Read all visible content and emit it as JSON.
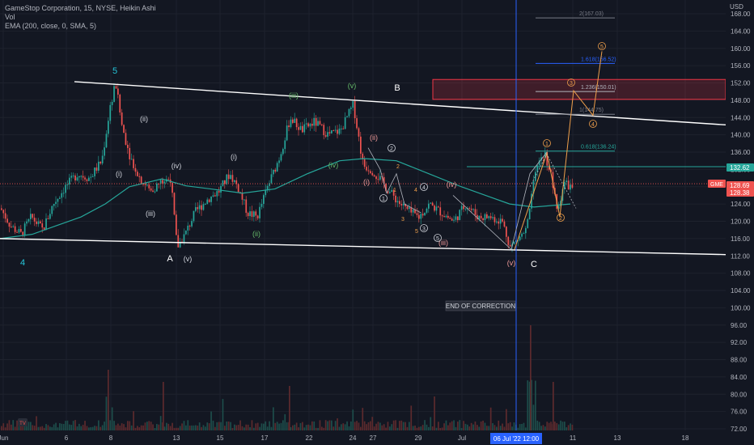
{
  "header": {
    "title": "GameStop Corporation, 15, NYSE, Heikin Ashi",
    "vol": "Vol",
    "ema": "EMA (200, close, 0, SMA, 5)"
  },
  "price_axis": {
    "currency": "USD",
    "ticks": [
      "168.00",
      "164.00",
      "160.00",
      "156.00",
      "152.00",
      "148.00",
      "144.00",
      "140.00",
      "136.00",
      "132.00",
      "128.00",
      "124.00",
      "120.00",
      "116.00",
      "112.00",
      "108.00",
      "104.00",
      "100.00",
      "96.00",
      "92.00",
      "88.00",
      "84.00",
      "80.00",
      "76.00",
      "72.00"
    ],
    "badges": [
      {
        "text": "132.62",
        "color": "#26a69a"
      },
      {
        "text": "GME",
        "color": "#ef5350"
      },
      {
        "text": "128.69",
        "color": "#ef5350"
      },
      {
        "text": "128.38",
        "color": "#ef5350"
      }
    ]
  },
  "time_axis": {
    "ticks": [
      "Jun",
      "6",
      "8",
      "13",
      "15",
      "17",
      "22",
      "24",
      "27",
      "29",
      "Jul",
      "11",
      "13",
      "18"
    ],
    "cursor_label": "06 Jul '22   12:00"
  },
  "fib_levels": [
    {
      "label": "2(167.03)",
      "color": "#787b86"
    },
    {
      "label": "1.618(156.52)",
      "color": "#2962ff"
    },
    {
      "label": "1.236(150.01)",
      "color": "#b2b5be"
    },
    {
      "label": "1(144.75)",
      "color": "#787b86"
    },
    {
      "label": "0.618(136.24)",
      "color": "#26a69a"
    }
  ],
  "waves": {
    "cyan": [
      "5",
      "4"
    ],
    "white": [
      "A",
      "B",
      "C"
    ],
    "roman_white": [
      "(ii)",
      "(i)",
      "(iv)",
      "(iii)",
      "(v)",
      "(i)",
      "(ii)"
    ],
    "roman_green": [
      "(iii)",
      "(v)",
      "(iv)",
      "(ii)"
    ],
    "roman_red": [
      "(ii)",
      "(i)",
      "(iv)",
      "(iii)",
      "(v)"
    ],
    "circled": [
      "1",
      "2",
      "3",
      "4",
      "5"
    ],
    "small": [
      "1",
      "2",
      "3",
      "4",
      "5",
      "4",
      "3",
      "5"
    ],
    "fib_circles": [
      "1",
      "2",
      "3",
      "4",
      "5"
    ]
  },
  "annotation": "END OF CORRECTION",
  "logo": "TV"
}
